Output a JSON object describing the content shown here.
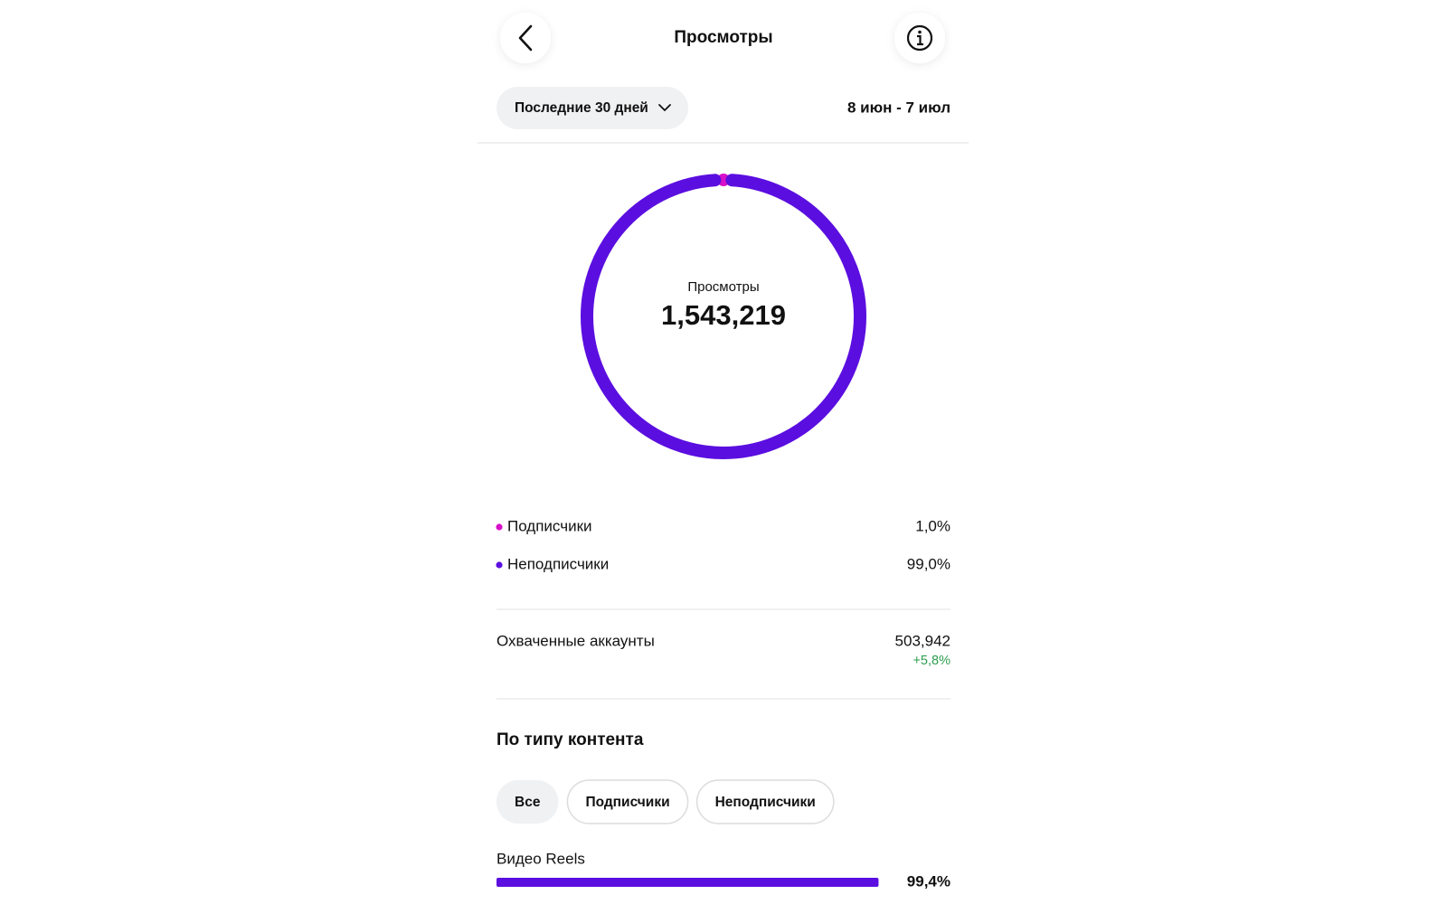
{
  "header": {
    "title": "Просмотры"
  },
  "filter": {
    "period": "Последние 30 дней",
    "range": "8 июн - 7 июл"
  },
  "chart_data": {
    "type": "donut",
    "center_label": "Просмотры",
    "center_value": "1,543,219",
    "categories": [
      "Подписчики",
      "Неподписчики"
    ],
    "values": [
      1.0,
      99.0
    ],
    "value_labels": [
      "1,0%",
      "99,0%"
    ],
    "colors": [
      "#d80fc9",
      "#5b0ee0"
    ]
  },
  "reached": {
    "label": "Охваченные аккаунты",
    "value": "503,942",
    "change": "+5,8%"
  },
  "content_type": {
    "title": "По типу контента",
    "tabs": [
      "Все",
      "Подписчики",
      "Неподписчики"
    ],
    "selected": 0,
    "bars": [
      {
        "name": "Видео Reels",
        "value": 99.4,
        "value_label": "99,4%",
        "color": "#5b0ee0"
      }
    ]
  }
}
